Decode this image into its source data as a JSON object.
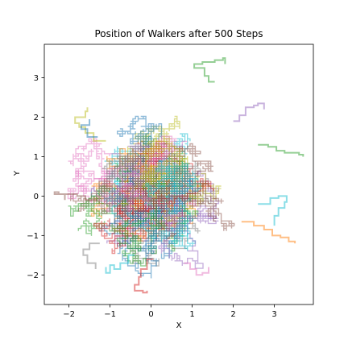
{
  "chart_data": {
    "type": "line",
    "title": "Position of Walkers after 500 Steps",
    "xlabel": "X",
    "ylabel": "Y",
    "xlim": [
      -2.6,
      3.95
    ],
    "ylim": [
      -2.75,
      3.85
    ],
    "xticks": [
      -2,
      -1,
      0,
      1,
      2,
      3
    ],
    "yticks": [
      -2,
      -1,
      0,
      1,
      2,
      3
    ],
    "grid": false,
    "line_alpha": 0.5,
    "colors": [
      "#1f77b4",
      "#ff7f0e",
      "#2ca02c",
      "#d62728",
      "#9467bd",
      "#8c564b",
      "#e377c2",
      "#7f7f7f",
      "#bcbd22",
      "#17becf"
    ],
    "walkers": 100,
    "steps": 500,
    "step_size": 0.0632,
    "extreme_paths": [
      {
        "color": "#2ca02c",
        "points": [
          [
            1.55,
            2.9
          ],
          [
            1.4,
            3.05
          ],
          [
            1.3,
            3.25
          ],
          [
            1.05,
            3.35
          ],
          [
            1.25,
            3.4
          ],
          [
            1.55,
            3.45
          ],
          [
            1.75,
            3.5
          ],
          [
            1.8,
            3.35
          ]
        ]
      },
      {
        "color": "#2ca02c",
        "points": [
          [
            2.6,
            1.3
          ],
          [
            2.85,
            1.25
          ],
          [
            3.05,
            1.15
          ],
          [
            3.25,
            1.1
          ],
          [
            3.45,
            1.1
          ],
          [
            3.6,
            1.05
          ],
          [
            3.7,
            1.0
          ]
        ]
      },
      {
        "color": "#ff7f0e",
        "points": [
          [
            2.2,
            -0.65
          ],
          [
            2.5,
            -0.75
          ],
          [
            2.75,
            -0.85
          ],
          [
            2.95,
            -1.0
          ],
          [
            3.15,
            -1.05
          ],
          [
            3.35,
            -1.15
          ],
          [
            3.5,
            -1.2
          ]
        ]
      },
      {
        "color": "#17becf",
        "points": [
          [
            2.6,
            -0.2
          ],
          [
            2.9,
            -0.05
          ],
          [
            3.1,
            0.0
          ],
          [
            3.3,
            -0.15
          ],
          [
            3.25,
            -0.3
          ],
          [
            3.1,
            -0.5
          ],
          [
            3.0,
            -0.75
          ]
        ]
      },
      {
        "color": "#d62728",
        "points": [
          [
            0.05,
            -1.6
          ],
          [
            -0.1,
            -1.85
          ],
          [
            -0.25,
            -2.05
          ],
          [
            -0.3,
            -2.25
          ],
          [
            -0.4,
            -2.4
          ],
          [
            -0.2,
            -2.45
          ],
          [
            -0.1,
            -2.4
          ]
        ]
      },
      {
        "color": "#8c564b",
        "points": [
          [
            -1.3,
            -0.1
          ],
          [
            -1.6,
            0.0
          ],
          [
            -1.8,
            0.05
          ],
          [
            -2.05,
            0.05
          ],
          [
            -2.25,
            0.1
          ],
          [
            -2.35,
            0.05
          ],
          [
            -2.1,
            -0.1
          ]
        ]
      },
      {
        "color": "#bcbd22",
        "points": [
          [
            -1.1,
            1.4
          ],
          [
            -1.4,
            1.6
          ],
          [
            -1.6,
            1.75
          ],
          [
            -1.75,
            1.85
          ],
          [
            -1.85,
            2.0
          ],
          [
            -1.6,
            2.15
          ],
          [
            -1.55,
            2.25
          ]
        ]
      },
      {
        "color": "#9467bd",
        "points": [
          [
            2.0,
            1.9
          ],
          [
            2.15,
            2.05
          ],
          [
            2.3,
            2.25
          ],
          [
            2.5,
            2.3
          ],
          [
            2.6,
            2.35
          ],
          [
            2.75,
            2.2
          ]
        ]
      },
      {
        "color": "#17becf",
        "points": [
          [
            -0.4,
            -1.5
          ],
          [
            -0.55,
            -1.7
          ],
          [
            -0.75,
            -1.85
          ],
          [
            -0.9,
            -1.75
          ],
          [
            -1.0,
            -1.95
          ],
          [
            -1.1,
            -1.8
          ]
        ]
      },
      {
        "color": "#7f7f7f",
        "points": [
          [
            -1.25,
            -1.2
          ],
          [
            -1.5,
            -1.35
          ],
          [
            -1.65,
            -1.5
          ],
          [
            -1.55,
            -1.7
          ],
          [
            -1.35,
            -1.85
          ]
        ]
      },
      {
        "color": "#e377c2",
        "points": [
          [
            0.8,
            -1.7
          ],
          [
            0.95,
            -1.85
          ],
          [
            1.1,
            -2.0
          ],
          [
            1.25,
            -1.95
          ],
          [
            1.4,
            -1.8
          ]
        ]
      },
      {
        "color": "#1f77b4",
        "points": [
          [
            -1.3,
            1.5
          ],
          [
            -1.55,
            1.7
          ],
          [
            -1.7,
            1.8
          ],
          [
            -1.5,
            1.95
          ]
        ]
      }
    ]
  }
}
